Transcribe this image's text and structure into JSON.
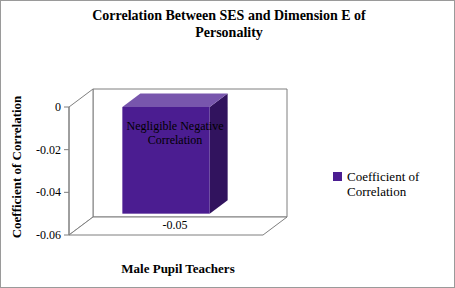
{
  "chart_data": {
    "type": "bar",
    "title": "Correlation Between SES and Dimension E of Personality",
    "y_label": "Coefficient of Correlation",
    "categories": [
      "Male Pupil Teachers"
    ],
    "series": [
      {
        "name": "Coefficient of Correlation",
        "color": "#4b1d91",
        "values": [
          -0.05
        ]
      }
    ],
    "annotations": [
      "Negligible Negative Correlation"
    ],
    "ylim": [
      -0.06,
      0
    ],
    "yticks": [
      0,
      -0.02,
      -0.04,
      -0.06
    ],
    "grid": false,
    "legend": "right",
    "data_labels": true
  }
}
